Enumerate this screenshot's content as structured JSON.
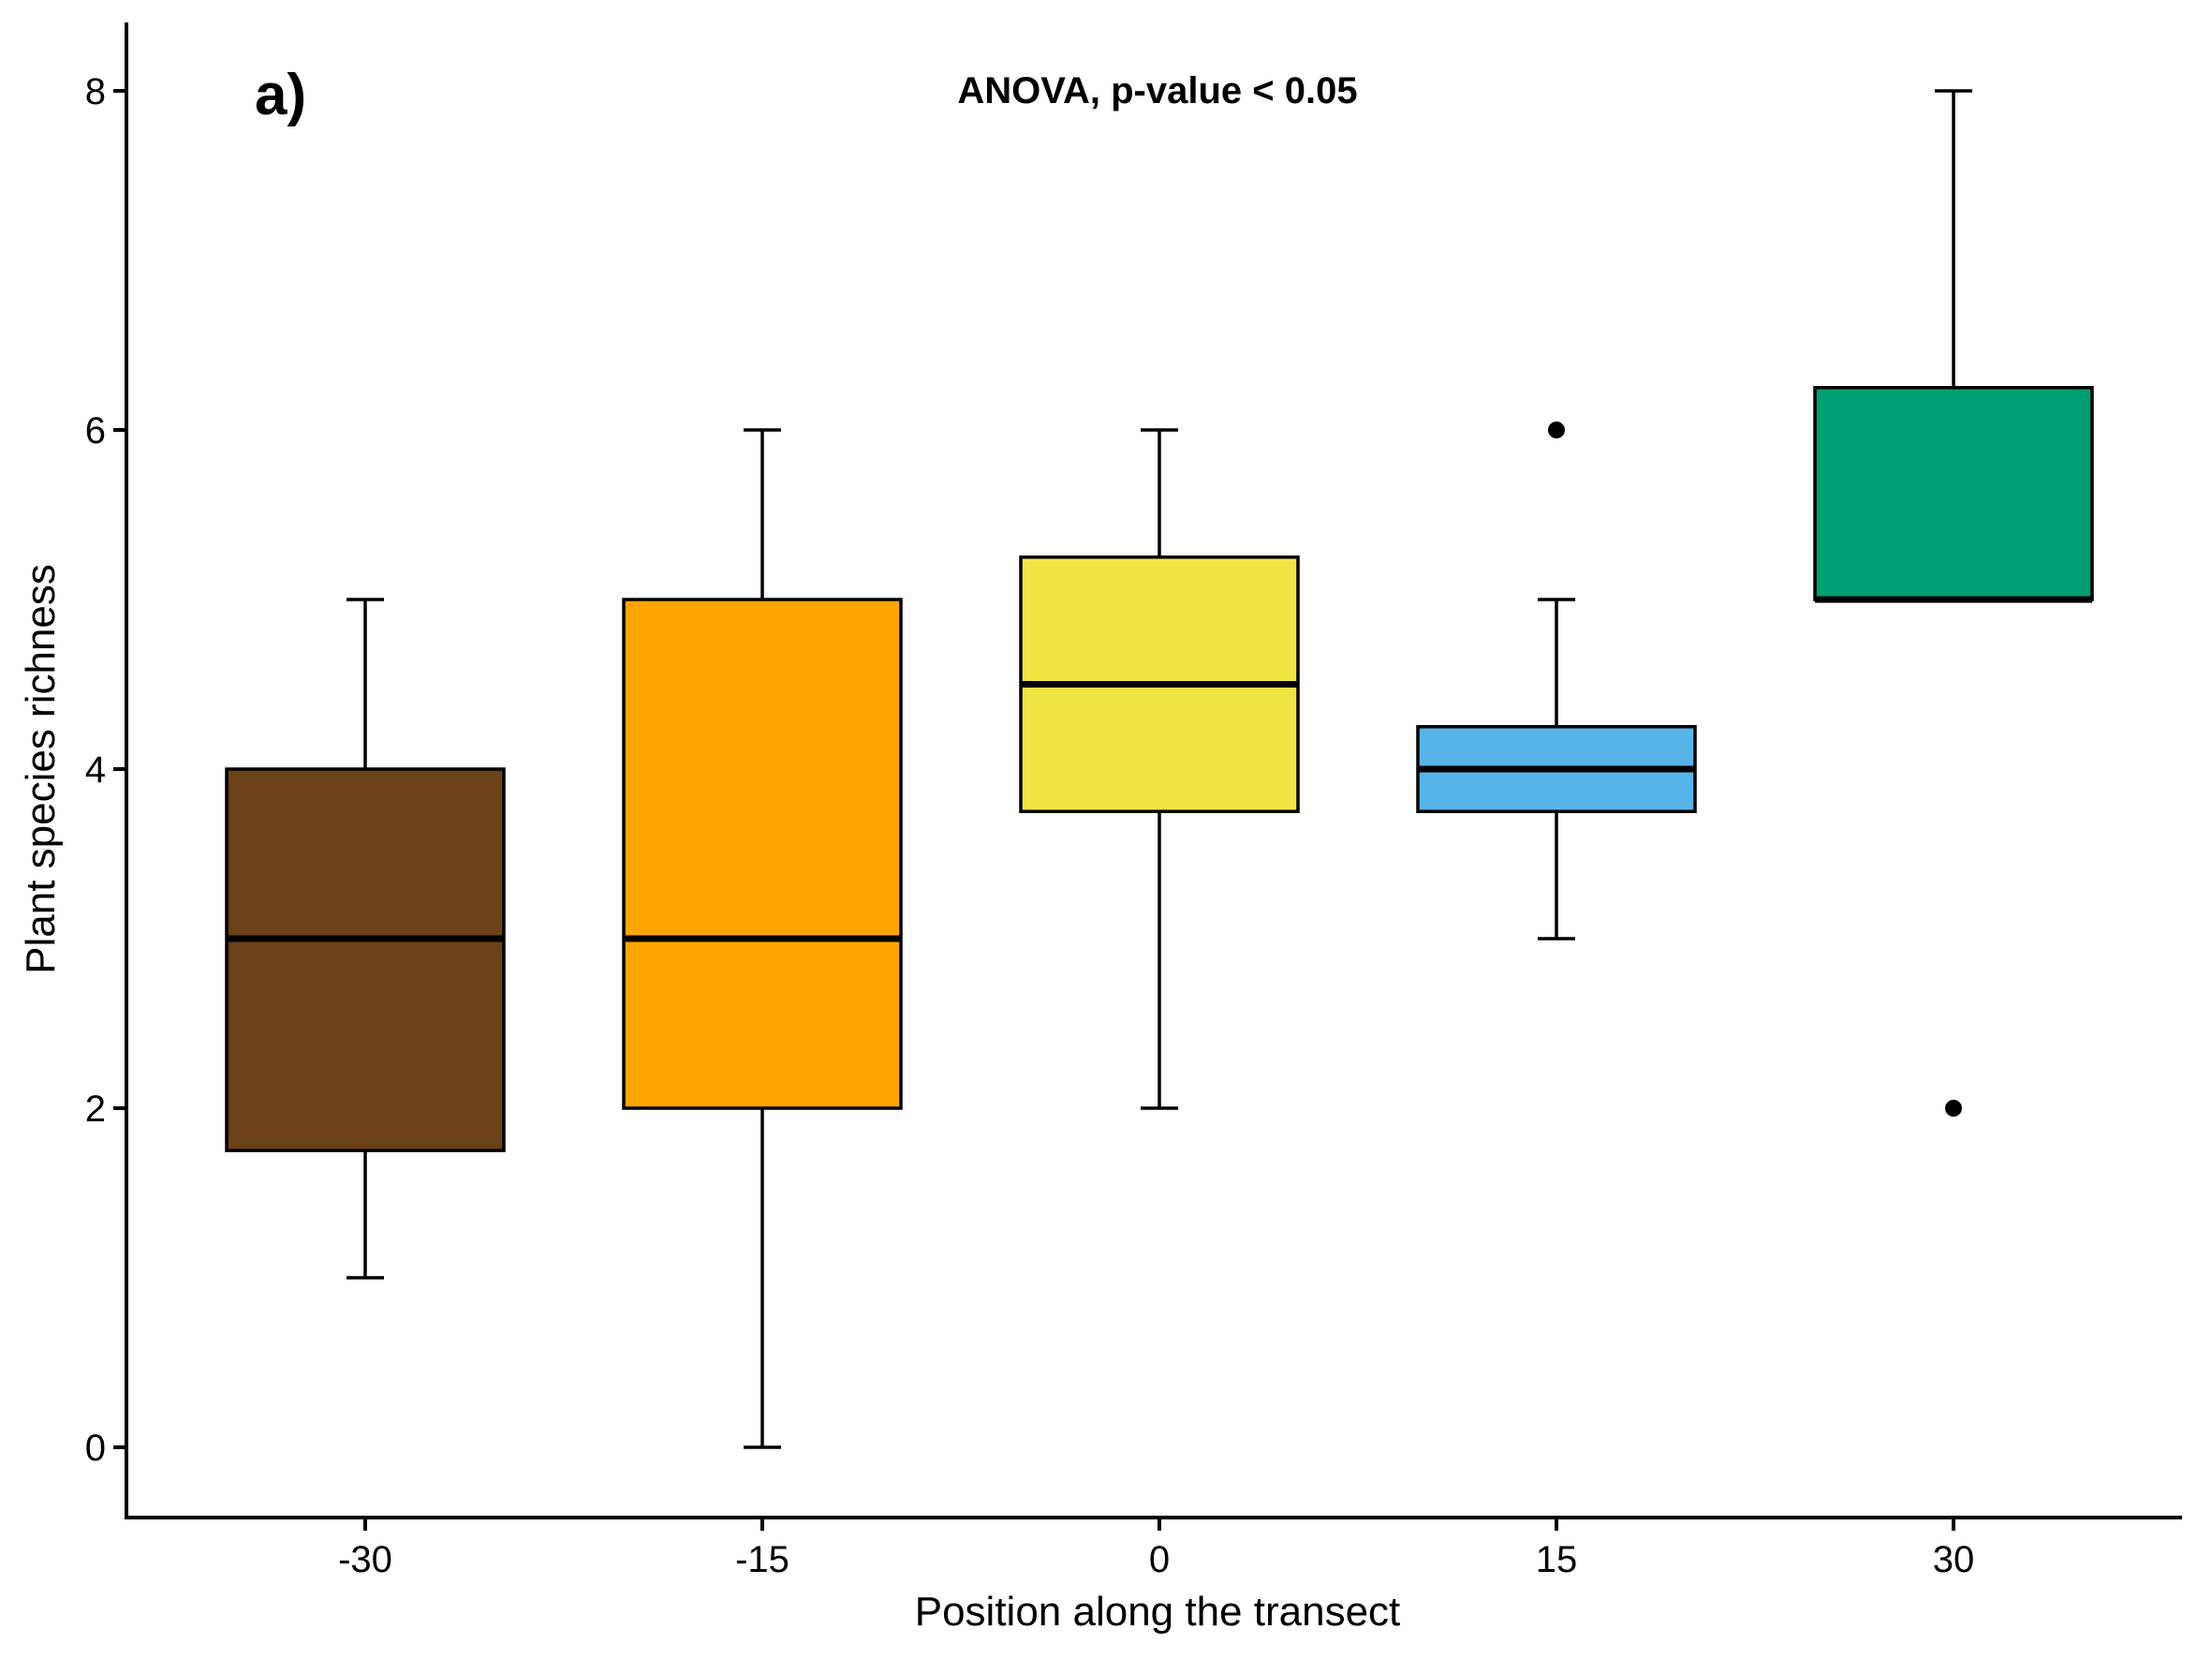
{
  "chart_data": {
    "type": "boxplot",
    "panel_label": "a)",
    "annotation": "ANOVA, p-value < 0.05",
    "xlabel": "Position along the transect",
    "ylabel": "Plant species richness",
    "ylim": [
      -0.4,
      8.4
    ],
    "yticks": [
      "0",
      "2",
      "4",
      "6",
      "8"
    ],
    "grid": false,
    "legend": "none",
    "categories": [
      "-30",
      "-15",
      "0",
      "15",
      "30"
    ],
    "boxes": [
      {
        "category": "-30",
        "whisker_low": 1,
        "q1": 1.75,
        "median": 3,
        "q3": 4,
        "whisker_high": 5,
        "outliers": [],
        "color": "#6B4118"
      },
      {
        "category": "-15",
        "whisker_low": 0,
        "q1": 2,
        "median": 3,
        "q3": 5,
        "whisker_high": 6,
        "outliers": [],
        "color": "#FFA500"
      },
      {
        "category": "0",
        "whisker_low": 2,
        "q1": 3.75,
        "median": 4.5,
        "q3": 5.25,
        "whisker_high": 6,
        "outliers": [],
        "color": "#F0E442"
      },
      {
        "category": "15",
        "whisker_low": 3,
        "q1": 3.75,
        "median": 4,
        "q3": 4.25,
        "whisker_high": 5,
        "outliers": [
          6
        ],
        "color": "#56B4E9"
      },
      {
        "category": "30",
        "whisker_low": 5,
        "q1": 5,
        "median": 5,
        "q3": 6.25,
        "whisker_high": 8,
        "outliers": [
          2
        ],
        "color": "#009E73"
      }
    ]
  }
}
